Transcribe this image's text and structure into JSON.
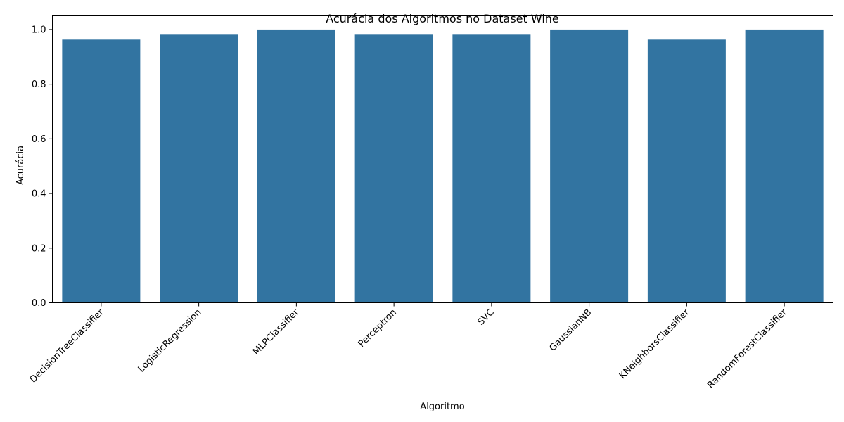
{
  "chart_data": {
    "type": "bar",
    "title": "Acurácia dos Algoritmos no Dataset Wine",
    "xlabel": "Algoritmo",
    "ylabel": "Acurácia",
    "ylim": [
      0,
      1.05
    ],
    "yticks": [
      "0.0",
      "0.2",
      "0.4",
      "0.6",
      "0.8",
      "1.0"
    ],
    "categories": [
      "DecisionTreeClassifier",
      "LogisticRegression",
      "MLPClassifier",
      "Perceptron",
      "SVC",
      "GaussianNB",
      "KNeighborsClassifier",
      "RandomForestClassifier"
    ],
    "values": [
      0.963,
      0.981,
      1.0,
      0.981,
      0.981,
      1.0,
      0.963,
      1.0
    ],
    "bar_color": "#3274a1",
    "grid": false,
    "legend": "none"
  }
}
